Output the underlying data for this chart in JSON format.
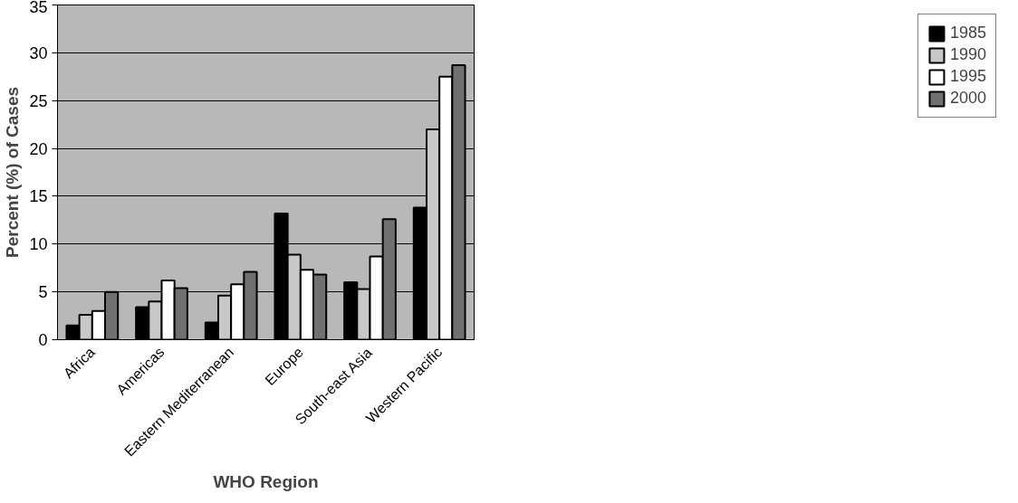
{
  "chart_data": {
    "type": "bar",
    "xlabel": "WHO Region",
    "ylabel": "Percent (%) of Cases",
    "categories": [
      "Africa",
      "Americas",
      "Eastern Mediterranean",
      "Europe",
      "South-east Asia",
      "Western Pacific"
    ],
    "series": [
      {
        "name": "1985",
        "color": "#000000",
        "values": [
          1.5,
          3.4,
          1.8,
          13.2,
          6.0,
          13.8
        ]
      },
      {
        "name": "1990",
        "color": "#c8c8c8",
        "values": [
          2.6,
          4.0,
          4.6,
          8.9,
          5.3,
          22.0
        ]
      },
      {
        "name": "1995",
        "color": "#ffffff",
        "values": [
          3.0,
          6.2,
          5.8,
          7.3,
          8.7,
          27.5
        ]
      },
      {
        "name": "2000",
        "color": "#707070",
        "values": [
          5.0,
          5.4,
          7.1,
          6.8,
          12.6,
          28.7
        ]
      }
    ],
    "ylim": [
      0,
      35
    ],
    "yticks": [
      0,
      5,
      10,
      15,
      20,
      25,
      30,
      35
    ],
    "grid": "y",
    "legend": "right"
  }
}
